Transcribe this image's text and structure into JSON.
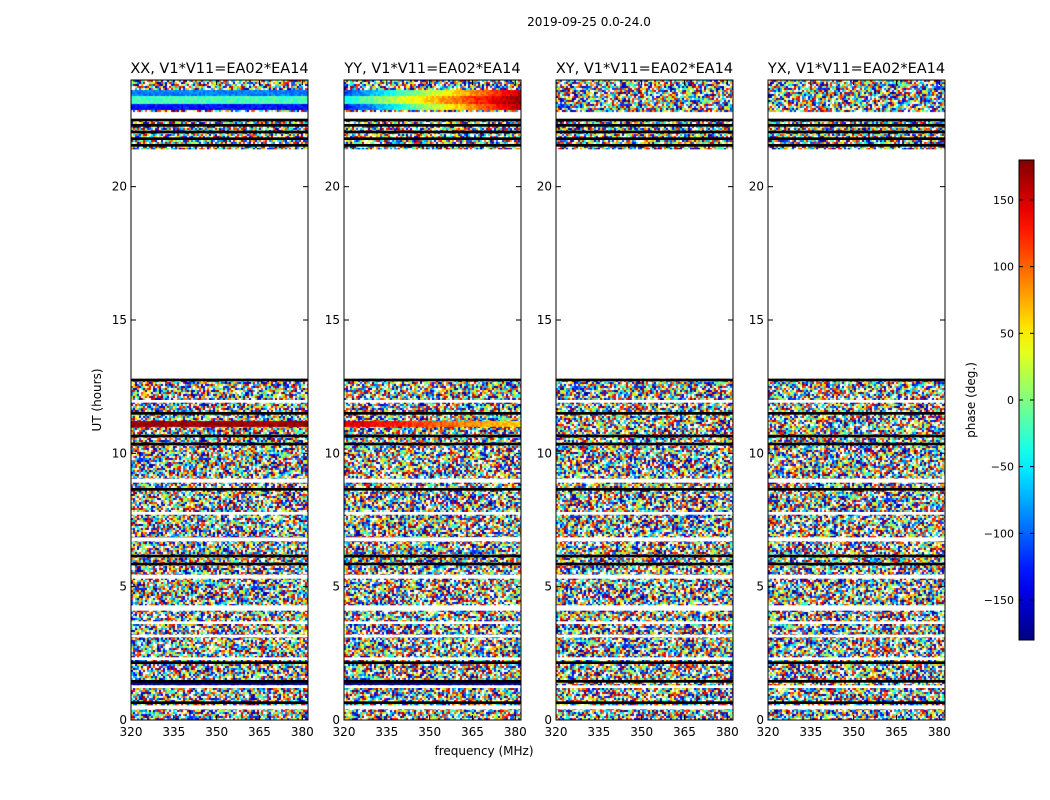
{
  "figure": {
    "title": "2019-09-25 0.0-24.0",
    "xlabel": "frequency (MHz)",
    "ylabel": "UT (hours)"
  },
  "chart_data": {
    "type": "heatmap",
    "x_range": [
      320,
      382
    ],
    "y_range": [
      0,
      24
    ],
    "x_ticks": [
      320,
      335,
      350,
      365,
      380
    ],
    "y_ticks": [
      0,
      5,
      10,
      15,
      20
    ],
    "value_label": "phase (deg.)",
    "value_range": [
      -180,
      180
    ],
    "colorbar_ticks": [
      -150,
      -100,
      -50,
      0,
      50,
      100,
      150
    ],
    "colormap": "jet",
    "panels": [
      {
        "title": "XX, V1*V11=EA02*EA14",
        "noise_ranges_hours": [
          [
            0,
            12.8
          ],
          [
            21.4,
            22.5
          ],
          [
            22.8,
            24
          ]
        ],
        "flagged_ranges_hours": [
          [
            0.4,
            0.55
          ],
          [
            1.2,
            1.3
          ],
          [
            2.25,
            2.35
          ],
          [
            3.1,
            3.2
          ],
          [
            3.6,
            3.7
          ],
          [
            4.1,
            4.3
          ],
          [
            5.3,
            5.45
          ],
          [
            6.7,
            6.85
          ],
          [
            7.7,
            7.8
          ],
          [
            8.9,
            9.05
          ],
          [
            11.9,
            12.0
          ],
          [
            12.8,
            21.4
          ]
        ],
        "flag_lines_hours": [
          [
            0.6,
            0.7
          ],
          [
            1.4,
            1.5
          ],
          [
            2.1,
            2.2
          ],
          [
            5.8,
            5.9
          ],
          [
            6.1,
            6.2
          ],
          [
            8.6,
            8.7
          ],
          [
            10.3,
            10.4
          ],
          [
            10.6,
            10.7
          ],
          [
            11.45,
            11.55
          ],
          [
            12.7,
            12.8
          ],
          [
            21.5,
            21.6
          ],
          [
            21.75,
            21.85
          ],
          [
            22.0,
            22.1
          ],
          [
            22.25,
            22.35
          ],
          [
            22.45,
            22.55
          ]
        ],
        "coherent_bands": [
          {
            "hours": [
              11.0,
              11.2
            ],
            "phase_start": 170,
            "phase_end": 170
          },
          {
            "hours": [
              6.75,
              6.85
            ],
            "phase_start": -170,
            "phase_end": -170
          },
          {
            "hours": [
              1.35,
              1.45
            ],
            "phase_start": -170,
            "phase_end": -170
          },
          {
            "hours": [
              22.9,
              23.1
            ],
            "phase_start": -130,
            "phase_end": -130
          },
          {
            "hours": [
              23.1,
              23.45
            ],
            "phase_start": -20,
            "phase_end": -20
          },
          {
            "hours": [
              23.45,
              23.6
            ],
            "phase_start": -90,
            "phase_end": -90
          }
        ]
      },
      {
        "title": "YY, V1*V11=EA02*EA14",
        "noise_ranges_hours": [
          [
            0,
            12.8
          ],
          [
            21.4,
            22.5
          ],
          [
            22.8,
            24
          ]
        ],
        "flagged_ranges_hours": [
          [
            0.4,
            0.55
          ],
          [
            1.2,
            1.3
          ],
          [
            2.25,
            2.35
          ],
          [
            3.1,
            3.2
          ],
          [
            3.6,
            3.7
          ],
          [
            4.1,
            4.3
          ],
          [
            5.3,
            5.45
          ],
          [
            6.7,
            6.85
          ],
          [
            7.7,
            7.8
          ],
          [
            8.9,
            9.05
          ],
          [
            11.9,
            12.0
          ],
          [
            12.8,
            21.4
          ]
        ],
        "flag_lines_hours": [
          [
            0.6,
            0.7
          ],
          [
            1.4,
            1.5
          ],
          [
            2.1,
            2.2
          ],
          [
            5.8,
            5.9
          ],
          [
            6.1,
            6.2
          ],
          [
            8.6,
            8.7
          ],
          [
            10.3,
            10.4
          ],
          [
            10.6,
            10.7
          ],
          [
            11.45,
            11.55
          ],
          [
            12.7,
            12.8
          ],
          [
            21.5,
            21.6
          ],
          [
            21.75,
            21.85
          ],
          [
            22.0,
            22.1
          ],
          [
            22.25,
            22.35
          ],
          [
            22.45,
            22.55
          ]
        ],
        "coherent_bands": [
          {
            "hours": [
              11.0,
              11.2
            ],
            "phase_start": 150,
            "phase_end": 60
          },
          {
            "hours": [
              6.75,
              6.85
            ],
            "phase_start": 160,
            "phase_end": 40
          },
          {
            "hours": [
              1.35,
              1.45
            ],
            "phase_start": -170,
            "phase_end": -170
          },
          {
            "hours": [
              22.9,
              23.1
            ],
            "phase_start": -130,
            "phase_end": 170
          },
          {
            "hours": [
              23.1,
              23.45
            ],
            "phase_start": -40,
            "phase_end": 175
          },
          {
            "hours": [
              23.45,
              23.6
            ],
            "phase_start": -110,
            "phase_end": 160
          }
        ]
      },
      {
        "title": "XY, V1*V11=EA02*EA14",
        "noise_ranges_hours": [
          [
            0,
            12.8
          ],
          [
            21.4,
            22.5
          ],
          [
            22.8,
            24
          ]
        ],
        "flagged_ranges_hours": [
          [
            0.4,
            0.55
          ],
          [
            1.2,
            1.3
          ],
          [
            2.25,
            2.35
          ],
          [
            3.1,
            3.2
          ],
          [
            3.6,
            3.7
          ],
          [
            4.1,
            4.3
          ],
          [
            5.3,
            5.45
          ],
          [
            6.7,
            6.85
          ],
          [
            7.7,
            7.8
          ],
          [
            8.9,
            9.05
          ],
          [
            11.9,
            12.0
          ],
          [
            12.8,
            21.4
          ]
        ],
        "flag_lines_hours": [
          [
            0.6,
            0.7
          ],
          [
            1.4,
            1.5
          ],
          [
            2.1,
            2.2
          ],
          [
            5.8,
            5.9
          ],
          [
            6.1,
            6.2
          ],
          [
            8.6,
            8.7
          ],
          [
            10.3,
            10.4
          ],
          [
            10.6,
            10.7
          ],
          [
            11.45,
            11.55
          ],
          [
            12.7,
            12.8
          ],
          [
            21.5,
            21.6
          ],
          [
            21.75,
            21.85
          ],
          [
            22.0,
            22.1
          ],
          [
            22.25,
            22.35
          ],
          [
            22.45,
            22.55
          ]
        ],
        "coherent_bands": []
      },
      {
        "title": "YX, V1*V11=EA02*EA14",
        "noise_ranges_hours": [
          [
            0,
            12.8
          ],
          [
            21.4,
            22.5
          ],
          [
            22.8,
            24
          ]
        ],
        "flagged_ranges_hours": [
          [
            0.4,
            0.55
          ],
          [
            1.2,
            1.3
          ],
          [
            2.25,
            2.35
          ],
          [
            3.1,
            3.2
          ],
          [
            3.6,
            3.7
          ],
          [
            4.1,
            4.3
          ],
          [
            5.3,
            5.45
          ],
          [
            6.7,
            6.85
          ],
          [
            7.7,
            7.8
          ],
          [
            8.9,
            9.05
          ],
          [
            11.9,
            12.0
          ],
          [
            12.8,
            21.4
          ]
        ],
        "flag_lines_hours": [
          [
            0.6,
            0.7
          ],
          [
            1.4,
            1.5
          ],
          [
            2.1,
            2.2
          ],
          [
            5.8,
            5.9
          ],
          [
            6.1,
            6.2
          ],
          [
            8.6,
            8.7
          ],
          [
            10.3,
            10.4
          ],
          [
            10.6,
            10.7
          ],
          [
            11.45,
            11.55
          ],
          [
            12.7,
            12.8
          ],
          [
            21.5,
            21.6
          ],
          [
            21.75,
            21.85
          ],
          [
            22.0,
            22.1
          ],
          [
            22.25,
            22.35
          ],
          [
            22.45,
            22.55
          ]
        ],
        "coherent_bands": []
      }
    ]
  }
}
